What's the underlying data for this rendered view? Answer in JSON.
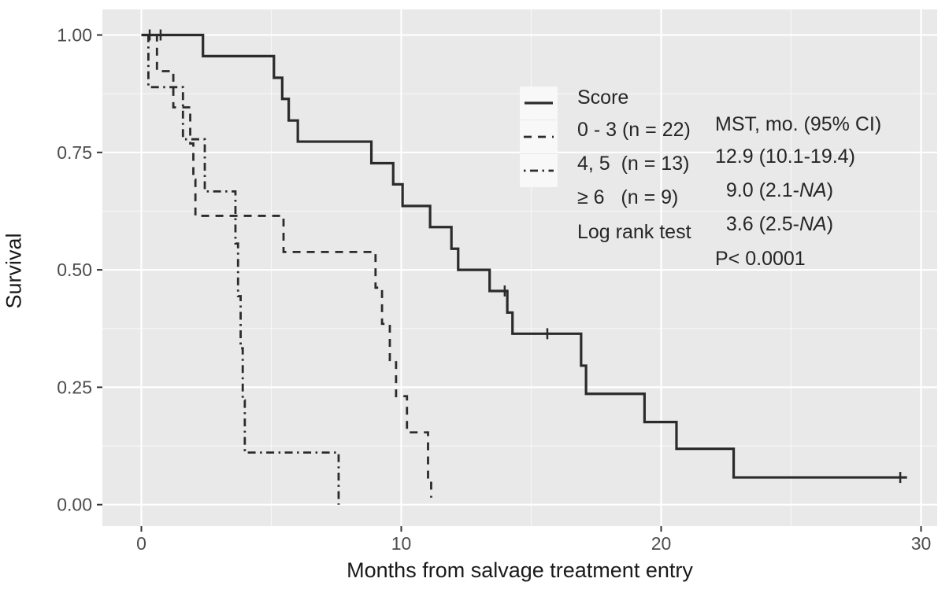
{
  "colors": {
    "panel_bg": "#e9e9e9",
    "grid": "#ffffff",
    "curve": "#2b2b2b",
    "tick_label": "#4d4d4d",
    "axis_tick": "#333333",
    "axis_title": "#1a1a1a",
    "legend_text": "#262626",
    "legend_key_bg": "#f8f8f8"
  },
  "legend": {
    "header": {
      "col1": "Score",
      "col2": "MST, mo. (95% CI)"
    },
    "rows": [
      {
        "style": "solid",
        "label": "0 - 3 (n = 22)",
        "value_pre": "12.9 (10.1-19.4)",
        "value_na": "",
        "value_post": ""
      },
      {
        "style": "dashed",
        "label": "4, 5  (n = 13)",
        "value_pre": "  9.0 (2.1-",
        "value_na": "NA",
        "value_post": ")"
      },
      {
        "style": "dashdot",
        "label": "≥ 6   (n = 9)",
        "value_pre": "  3.6 (2.5-",
        "value_na": "NA",
        "value_post": ")"
      }
    ],
    "footer": {
      "col1": "Log rank test",
      "col2": "P< 0.0001"
    }
  },
  "chart_data": {
    "type": "line",
    "subtype": "kaplan-meier-step",
    "title": "",
    "xlabel": "Months from salvage treatment entry",
    "ylabel": "Survival",
    "xlim": [
      -1.5,
      30.6
    ],
    "ylim": [
      -0.046,
      1.054
    ],
    "grid": true,
    "legend_position": "inside-top-right",
    "x_axis": {
      "title": "Months from salvage treatment entry",
      "ticks": [
        {
          "v": 0,
          "label": "0"
        },
        {
          "v": 10,
          "label": "10"
        },
        {
          "v": 20,
          "label": "20"
        },
        {
          "v": 30,
          "label": "30"
        }
      ],
      "minor": [
        5,
        15,
        25
      ]
    },
    "y_axis": {
      "title": "Survival",
      "ticks": [
        {
          "v": 1.0,
          "label": "1.00"
        },
        {
          "v": 0.75,
          "label": "0.75"
        },
        {
          "v": 0.5,
          "label": "0.50"
        },
        {
          "v": 0.25,
          "label": "0.25"
        },
        {
          "v": 0.0,
          "label": "0.00"
        }
      ],
      "minor": [
        0.125,
        0.375,
        0.625,
        0.875
      ]
    },
    "series": [
      {
        "name": "Score 0 - 3 (n = 22)",
        "style": "solid",
        "mst": "12.9",
        "ci": "10.1-19.4",
        "points": [
          [
            0,
            1.0
          ],
          [
            2.37,
            0.955
          ],
          [
            5.1,
            0.909
          ],
          [
            5.42,
            0.864
          ],
          [
            5.67,
            0.818
          ],
          [
            6.02,
            0.773
          ],
          [
            8.85,
            0.727
          ],
          [
            9.69,
            0.682
          ],
          [
            10.05,
            0.636
          ],
          [
            11.11,
            0.591
          ],
          [
            11.93,
            0.545
          ],
          [
            12.19,
            0.5
          ],
          [
            13.4,
            0.455
          ],
          [
            14.08,
            0.409
          ],
          [
            14.28,
            0.364
          ],
          [
            16.92,
            0.296
          ],
          [
            17.11,
            0.236
          ],
          [
            19.36,
            0.176
          ],
          [
            20.59,
            0.119
          ],
          [
            22.79,
            0.058
          ]
        ],
        "end": 29.46,
        "censors": [
          [
            0.32,
            1.0
          ],
          [
            0.74,
            1.0
          ],
          [
            13.98,
            0.455
          ],
          [
            15.62,
            0.364
          ],
          [
            29.2,
            0.058
          ]
        ]
      },
      {
        "name": "Score 4, 5 (n = 13)",
        "style": "dashed",
        "mst": "9.0",
        "ci": "2.1-NA",
        "points": [
          [
            0,
            1.0
          ],
          [
            0.6,
            0.923
          ],
          [
            1.23,
            0.846
          ],
          [
            1.88,
            0.769
          ],
          [
            2.0,
            0.692
          ],
          [
            2.08,
            0.615
          ],
          [
            5.47,
            0.538
          ],
          [
            9.01,
            0.462
          ],
          [
            9.26,
            0.385
          ],
          [
            9.56,
            0.308
          ],
          [
            9.8,
            0.231
          ],
          [
            10.22,
            0.154
          ],
          [
            11.03,
            0.058
          ],
          [
            11.15,
            0.015
          ]
        ],
        "end": 11.15,
        "censors": []
      },
      {
        "name": "Score ≥ 6 (n = 9)",
        "style": "dashdot",
        "mst": "3.6",
        "ci": "2.5-NA",
        "points": [
          [
            0,
            1.0
          ],
          [
            0.27,
            0.889
          ],
          [
            1.6,
            0.778
          ],
          [
            2.44,
            0.667
          ],
          [
            3.62,
            0.556
          ],
          [
            3.72,
            0.444
          ],
          [
            3.82,
            0.333
          ],
          [
            3.9,
            0.222
          ],
          [
            3.98,
            0.111
          ],
          [
            7.59,
            0.0
          ]
        ],
        "end": 7.59,
        "censors": []
      }
    ],
    "log_rank": "P< 0.0001"
  }
}
